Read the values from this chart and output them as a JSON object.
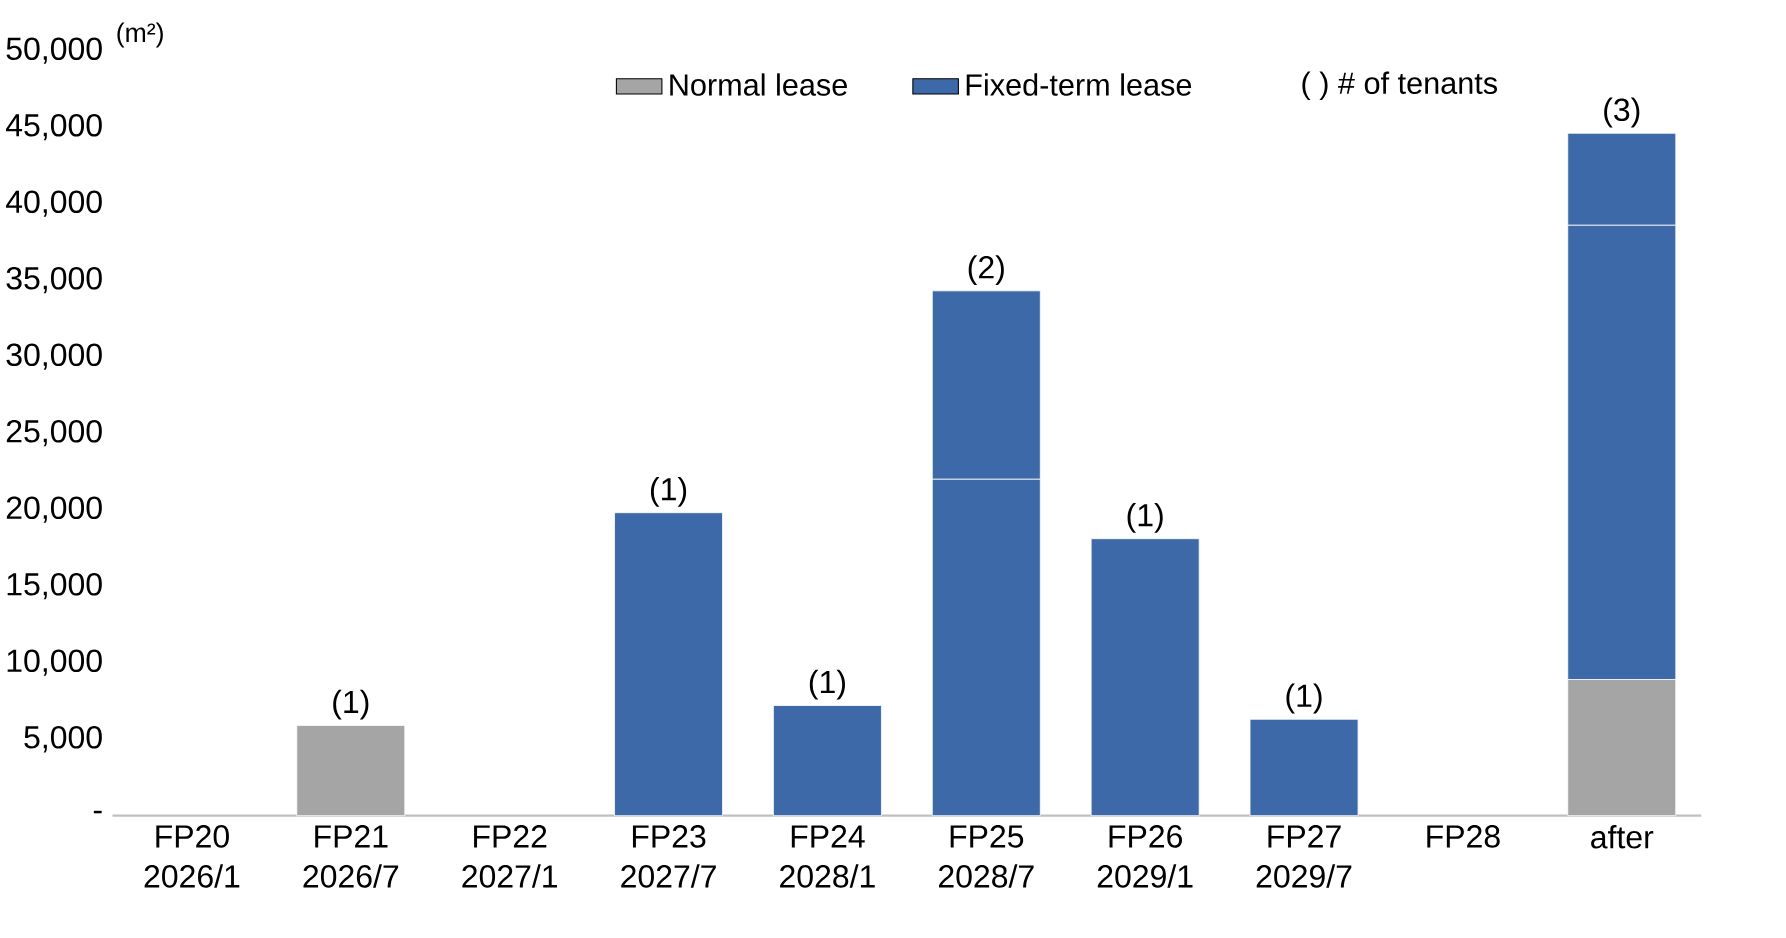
{
  "chart_data": {
    "type": "bar",
    "stacked": true,
    "ylabel": "(m²)",
    "legend": "top",
    "categories": [
      "FP20 2026/1",
      "FP21 2026/7",
      "FP22 2027/1",
      "FP23 2027/7",
      "FP24 2028/1",
      "FP25 2028/7",
      "FP26 2029/1",
      "FP27 2029/7",
      "FP28",
      "after"
    ],
    "series": [
      {
        "name": "Normal lease",
        "color": "#a5a5a5",
        "values": [
          null,
          5900,
          null,
          null,
          null,
          null,
          null,
          null,
          null,
          8900
        ]
      },
      {
        "name": "Fixed-term lease",
        "color": "#3d69a8",
        "values": [
          null,
          null,
          null,
          19800,
          7200,
          22000,
          18100,
          6300,
          null,
          29700
        ]
      },
      {
        "color": "#3d69a8",
        "values": [
          null,
          null,
          null,
          null,
          null,
          12300,
          null,
          null,
          null,
          6000
        ]
      }
    ],
    "ylim": [
      0,
      50000
    ],
    "yticks": [
      {
        "value": 0,
        "label": "-"
      },
      {
        "value": 5000,
        "label": "5,000"
      },
      {
        "value": 10000,
        "label": "10,000"
      },
      {
        "value": 15000,
        "label": "15,000"
      },
      {
        "value": 20000,
        "label": "20,000"
      },
      {
        "value": 25000,
        "label": "25,000"
      },
      {
        "value": 30000,
        "label": "30,000"
      },
      {
        "value": 35000,
        "label": "35,000"
      },
      {
        "value": 40000,
        "label": "40,000"
      },
      {
        "value": 45000,
        "label": "45,000"
      },
      {
        "value": 50000,
        "label": "50,000"
      }
    ],
    "annotations": [
      "( ) # of tenants",
      {
        "text": "(1)",
        "x": "FP21 2026/7",
        "y": 5900
      },
      {
        "text": "(1)",
        "x": "FP23 2027/7",
        "y": 19800
      },
      {
        "text": "(1)",
        "x": "FP24 2028/1",
        "y": 7200
      },
      {
        "text": "(2)",
        "x": "FP25 2028/7",
        "y": 34300
      },
      {
        "text": "(1)",
        "x": "FP26 2029/1",
        "y": 18100
      },
      {
        "text": "(1)",
        "x": "FP27 2029/7",
        "y": 6300
      },
      {
        "text": "(3)",
        "x": "after",
        "y": 44600
      }
    ]
  }
}
